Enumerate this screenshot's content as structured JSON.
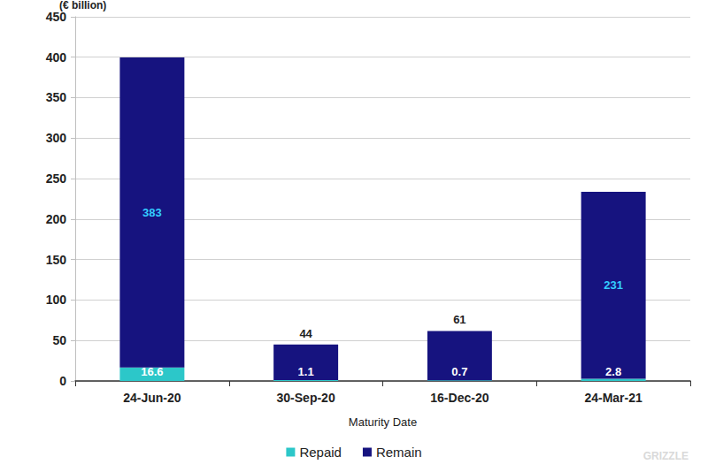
{
  "chart_data": {
    "type": "bar",
    "ylabel": "(€ billion)",
    "xlabel": "Maturity Date",
    "categories": [
      "24-Jun-20",
      "30-Sep-20",
      "16-Dec-20",
      "24-Mar-21"
    ],
    "series": [
      {
        "name": "Repaid",
        "color": "#2cc7c9",
        "values": [
          16.6,
          1.1,
          0.7,
          2.8
        ]
      },
      {
        "name": "Remain",
        "color": "#16137f",
        "values": [
          383,
          44,
          61,
          231
        ]
      }
    ],
    "ylim": [
      0,
      450
    ],
    "yticks": [
      0,
      50,
      100,
      150,
      200,
      250,
      300,
      350,
      400,
      450
    ],
    "grid": true,
    "stacked": true,
    "data_labels": true,
    "legend": "bottom",
    "watermark": "GRIZZLE"
  }
}
